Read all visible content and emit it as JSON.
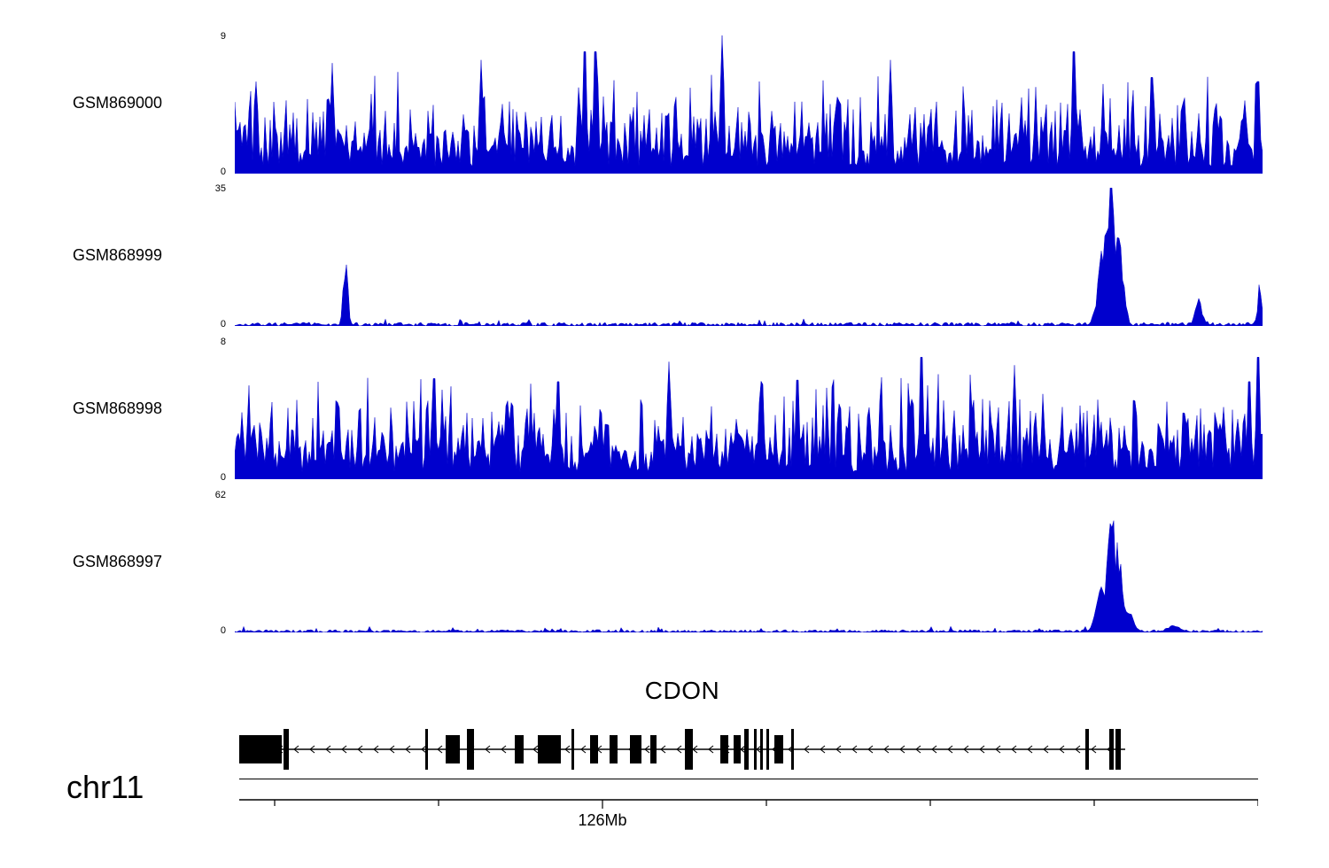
{
  "page": {
    "background": "#ffffff",
    "signal_color": "#0000CD",
    "ink_color": "#000000"
  },
  "chart_data": {
    "type": "area",
    "kind": "genome-browser-coverage-tracks",
    "title": "",
    "legend": "none",
    "grid": false,
    "x_region": {
      "chromosome": "chr11",
      "visible_tick_label": "126Mb"
    },
    "tracks": [
      {
        "name": "GSM869000",
        "ylim": [
          0,
          9
        ],
        "ytick_top": "9",
        "ytick_bottom": "0",
        "pattern": "dense",
        "seed": 101,
        "dense": {
          "base": [
            0.05,
            0.2
          ],
          "mid": [
            0.18,
            0.38
          ],
          "high": [
            0.38,
            0.56
          ],
          "spike": [
            0.56,
            0.74
          ],
          "p_spike": 0.05,
          "p_high": 0.16,
          "p_mid": 0.38
        },
        "peaks": [
          {
            "x": 395,
            "v": 9,
            "w": 2
          },
          {
            "x": 407,
            "v": 9,
            "w": 2
          },
          {
            "x": 550,
            "v": 9,
            "w": 2
          },
          {
            "x": 947,
            "v": 9,
            "w": 2
          },
          {
            "x": 110,
            "v": 7.2,
            "w": 2
          },
          {
            "x": 278,
            "v": 7.4,
            "w": 2
          },
          {
            "x": 740,
            "v": 7.4,
            "w": 2
          },
          {
            "x": 1035,
            "v": 7.1,
            "w": 2
          },
          {
            "x": 1155,
            "v": 6.8,
            "w": 2
          }
        ]
      },
      {
        "name": "GSM868999",
        "ylim": [
          0,
          35
        ],
        "ytick_top": "35",
        "ytick_bottom": "0",
        "pattern": "sparse",
        "seed": 202,
        "noise": 0.9,
        "peaks": [
          {
            "x": 125,
            "v": 16,
            "w": 2.5
          },
          {
            "x": 983,
            "v": 22,
            "w": 7
          },
          {
            "x": 989,
            "v": 35,
            "w": 4
          },
          {
            "x": 998,
            "v": 20,
            "w": 5
          },
          {
            "x": 1088,
            "v": 6,
            "w": 4
          },
          {
            "x": 1157,
            "v": 10,
            "w": 2
          }
        ]
      },
      {
        "name": "GSM868998",
        "ylim": [
          0,
          8
        ],
        "ytick_top": "8",
        "ytick_bottom": "0",
        "pattern": "dense",
        "seed": 303,
        "dense": {
          "base": [
            0.05,
            0.22
          ],
          "mid": [
            0.2,
            0.4
          ],
          "high": [
            0.4,
            0.58
          ],
          "spike": [
            0.58,
            0.76
          ],
          "p_spike": 0.04,
          "p_high": 0.15,
          "p_mid": 0.4
        },
        "peaks": [
          {
            "x": 775,
            "v": 8,
            "w": 2
          },
          {
            "x": 1155,
            "v": 8,
            "w": 2
          },
          {
            "x": 225,
            "v": 6.6,
            "w": 2
          },
          {
            "x": 365,
            "v": 6.4,
            "w": 2
          },
          {
            "x": 490,
            "v": 6.8,
            "w": 2
          },
          {
            "x": 635,
            "v": 6.5,
            "w": 2
          },
          {
            "x": 880,
            "v": 6.6,
            "w": 2
          },
          {
            "x": 1145,
            "v": 6.4,
            "w": 2
          }
        ]
      },
      {
        "name": "GSM868997",
        "ylim": [
          0,
          62
        ],
        "ytick_top": "62",
        "ytick_bottom": "0",
        "pattern": "sparse",
        "seed": 404,
        "noise": 1.2,
        "peaks": [
          {
            "x": 980,
            "v": 18,
            "w": 7
          },
          {
            "x": 989,
            "v": 62,
            "w": 4
          },
          {
            "x": 996,
            "v": 35,
            "w": 5
          },
          {
            "x": 1006,
            "v": 10,
            "w": 7
          },
          {
            "x": 1060,
            "v": 3,
            "w": 8
          }
        ]
      }
    ],
    "gene": {
      "name": "CDON",
      "strand": "left",
      "line": {
        "x1": 5,
        "x2": 1005
      },
      "arrow_step": 18,
      "exons": [
        {
          "x": 5,
          "w": 48,
          "t": "big"
        },
        {
          "x": 55,
          "w": 6,
          "t": "tall"
        },
        {
          "x": 215,
          "w": 3,
          "t": "tall"
        },
        {
          "x": 238,
          "w": 16,
          "t": "big"
        },
        {
          "x": 262,
          "w": 8,
          "t": "tall"
        },
        {
          "x": 316,
          "w": 10,
          "t": "big"
        },
        {
          "x": 342,
          "w": 26,
          "t": "big"
        },
        {
          "x": 380,
          "w": 3,
          "t": "tall"
        },
        {
          "x": 401,
          "w": 9,
          "t": "big"
        },
        {
          "x": 423,
          "w": 9,
          "t": "big"
        },
        {
          "x": 446,
          "w": 13,
          "t": "big"
        },
        {
          "x": 469,
          "w": 7,
          "t": "big"
        },
        {
          "x": 508,
          "w": 9,
          "t": "tall"
        },
        {
          "x": 548,
          "w": 9,
          "t": "big"
        },
        {
          "x": 563,
          "w": 8,
          "t": "big"
        },
        {
          "x": 575,
          "w": 5,
          "t": "tall"
        },
        {
          "x": 586,
          "w": 3,
          "t": "tall"
        },
        {
          "x": 593,
          "w": 3,
          "t": "tall"
        },
        {
          "x": 600,
          "w": 3,
          "t": "tall"
        },
        {
          "x": 609,
          "w": 10,
          "t": "big"
        },
        {
          "x": 628,
          "w": 3,
          "t": "tall"
        },
        {
          "x": 960,
          "w": 4,
          "t": "tall"
        },
        {
          "x": 987,
          "w": 5,
          "t": "tall"
        },
        {
          "x": 994,
          "w": 6,
          "t": "tall"
        }
      ]
    },
    "ruler": {
      "chrom": "chr11",
      "label": "126Mb",
      "ticks": [
        40,
        225,
        410,
        595,
        780,
        965,
        1150
      ],
      "label_tick_index": 2
    }
  }
}
